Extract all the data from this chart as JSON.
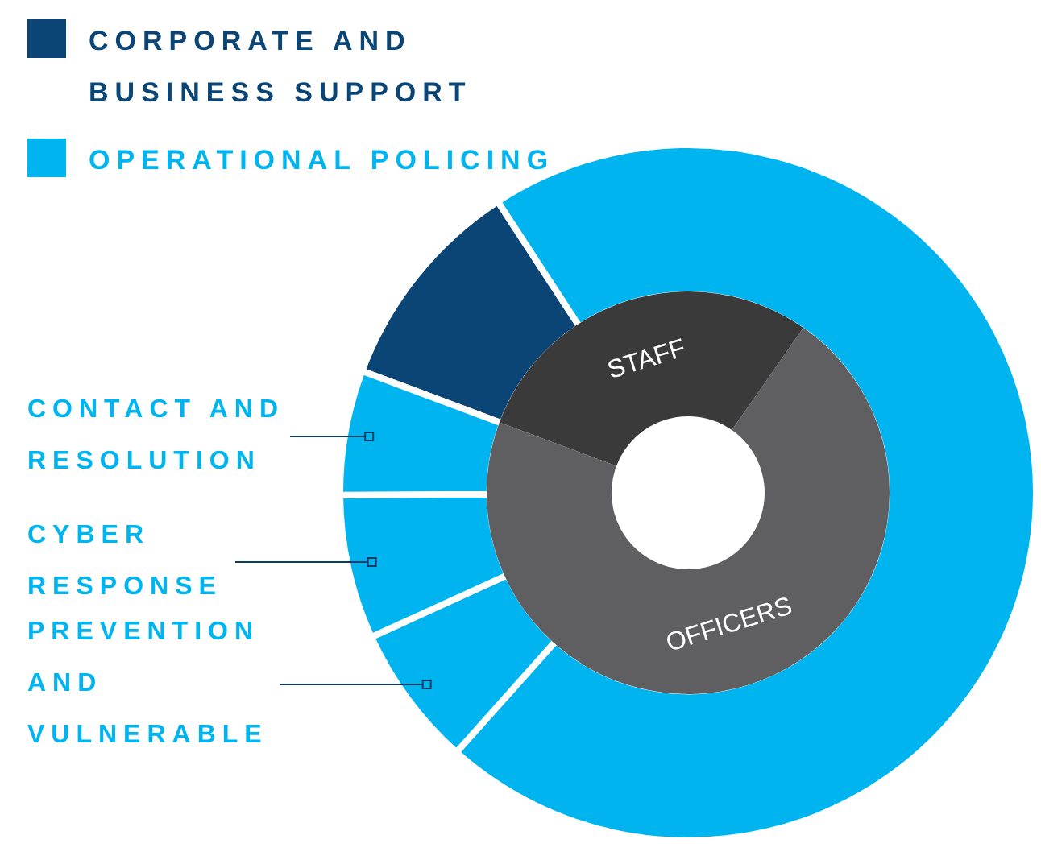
{
  "chart_data": [
    {
      "type": "donut",
      "categories": [
        "CORPORATE AND BUSINESS SUPPORT",
        "OPERATIONAL POLICING",
        "PREVENTION AND VULNERABLE",
        "CYBER RESPONSE",
        "CONTACT AND RESOLUTION"
      ],
      "values": [
        10.1,
        70.8,
        6.6,
        6.7,
        5.8
      ],
      "colors": [
        "#0a4575",
        "#00b5ef",
        "#00b5ef",
        "#00b5ef",
        "#00b5ef"
      ],
      "legend": "top left"
    },
    {
      "type": "donut",
      "categories": [
        "STAFF",
        "OFFICERS"
      ],
      "values": [
        29,
        71
      ],
      "colors": [
        "#3a3a3b",
        "#5f5f61"
      ]
    }
  ]
}
